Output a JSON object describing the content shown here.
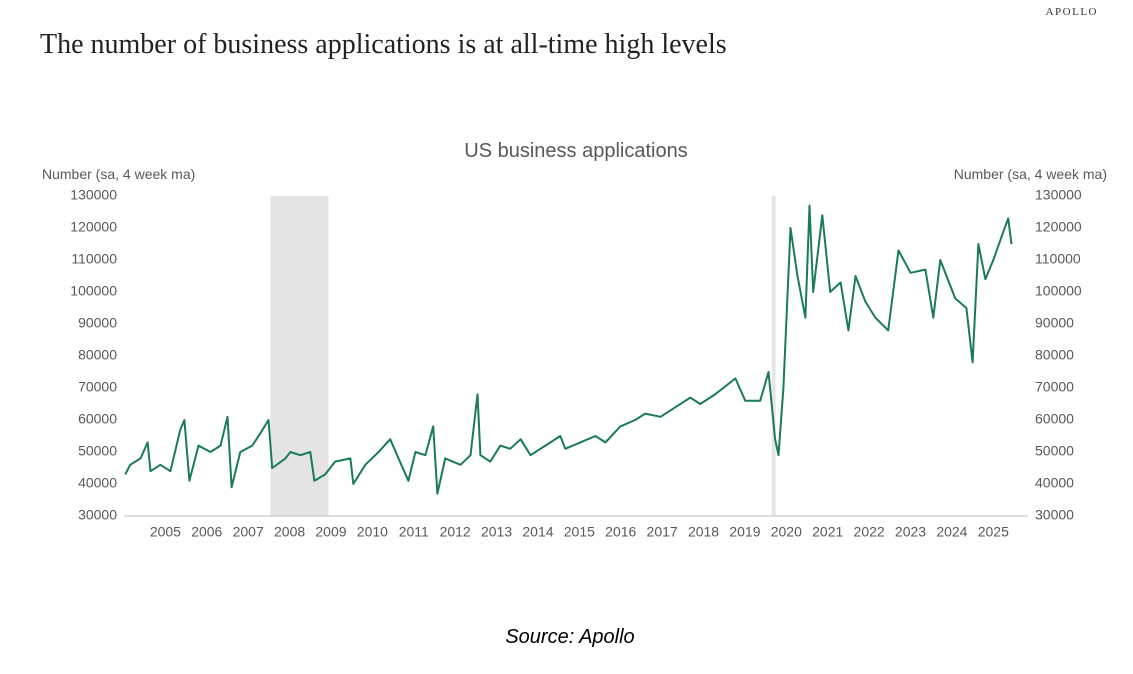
{
  "brand": "APOLLO",
  "headline": "The number of business applications is at all-time high levels",
  "source": "Source: Apollo",
  "chart_data": {
    "type": "line",
    "title": "US business applications",
    "y_label": "Number (sa, 4 week ma)",
    "y2_label": "Number (sa, 4 week ma)",
    "xlim": [
      2004.5,
      2026
    ],
    "ylim": [
      30000,
      130000
    ],
    "y2lim": [
      30000,
      130000
    ],
    "yticks": [
      30000,
      40000,
      50000,
      60000,
      70000,
      80000,
      90000,
      100000,
      110000,
      120000,
      130000
    ],
    "y2ticks": [
      30000,
      40000,
      50000,
      60000,
      70000,
      80000,
      90000,
      100000,
      110000,
      120000,
      130000
    ],
    "xticks": [
      {
        "value": 2005.5,
        "label": "2005"
      },
      {
        "value": 2006.5,
        "label": "2006"
      },
      {
        "value": 2007.5,
        "label": "2007"
      },
      {
        "value": 2008.5,
        "label": "2008"
      },
      {
        "value": 2009.5,
        "label": "2009"
      },
      {
        "value": 2010.5,
        "label": "2010"
      },
      {
        "value": 2011.5,
        "label": "2011"
      },
      {
        "value": 2012.5,
        "label": "2012"
      },
      {
        "value": 2013.5,
        "label": "2013"
      },
      {
        "value": 2014.5,
        "label": "2014"
      },
      {
        "value": 2015.5,
        "label": "2015"
      },
      {
        "value": 2016.5,
        "label": "2016"
      },
      {
        "value": 2017.5,
        "label": "2017"
      },
      {
        "value": 2018.5,
        "label": "2018"
      },
      {
        "value": 2019.5,
        "label": "2019"
      },
      {
        "value": 2020.5,
        "label": "2020"
      },
      {
        "value": 2021.5,
        "label": "2021"
      },
      {
        "value": 2022.5,
        "label": "2022"
      },
      {
        "value": 2023.5,
        "label": "2023"
      },
      {
        "value": 2024.5,
        "label": "2024"
      },
      {
        "value": 2025.5,
        "label": "2025"
      }
    ],
    "shaded_regions": [
      [
        2008.04,
        2009.44
      ],
      [
        2020.15,
        2020.24
      ]
    ],
    "shade_color": "#e3e4e3",
    "series": [
      {
        "color": "#1a7a5e",
        "x": [
          2004.53,
          2004.65,
          2004.9,
          2005.07,
          2005.14,
          2005.38,
          2005.62,
          2005.86,
          2005.96,
          2006.08,
          2006.3,
          2006.59,
          2006.83,
          2007.0,
          2007.1,
          2007.31,
          2007.6,
          2007.8,
          2007.99,
          2008.08,
          2008.4,
          2008.52,
          2008.76,
          2009.0,
          2009.1,
          2009.36,
          2009.6,
          2009.97,
          2010.04,
          2010.33,
          2010.65,
          2010.93,
          2011.13,
          2011.37,
          2011.54,
          2011.78,
          2011.97,
          2012.07,
          2012.26,
          2012.63,
          2012.87,
          2013.04,
          2013.11,
          2013.35,
          2013.59,
          2013.83,
          2014.08,
          2014.32,
          2014.68,
          2015.04,
          2015.16,
          2015.52,
          2015.89,
          2016.13,
          2016.49,
          2016.85,
          2017.09,
          2017.46,
          2017.82,
          2018.18,
          2018.42,
          2018.78,
          2019.27,
          2019.51,
          2019.87,
          2020.07,
          2020.23,
          2020.31,
          2020.43,
          2020.6,
          2020.77,
          2020.96,
          2021.06,
          2021.15,
          2021.37,
          2021.56,
          2021.81,
          2022.0,
          2022.17,
          2022.41,
          2022.65,
          2022.96,
          2023.21,
          2023.5,
          2023.86,
          2024.05,
          2024.22,
          2024.58,
          2024.85,
          2025.0,
          2025.14,
          2025.31,
          2025.5,
          2025.72,
          2025.86,
          2025.94
        ],
        "values": [
          43000,
          46000,
          48000,
          53000,
          44000,
          46000,
          44000,
          57000,
          60000,
          41000,
          52000,
          50000,
          52000,
          61000,
          39000,
          50000,
          52000,
          56000,
          60000,
          45000,
          48000,
          50000,
          49000,
          50000,
          41000,
          43000,
          47000,
          48000,
          40000,
          46000,
          50000,
          54000,
          48000,
          41000,
          50000,
          49000,
          58000,
          37000,
          48000,
          46000,
          49000,
          68000,
          49000,
          47000,
          52000,
          51000,
          54000,
          49000,
          52000,
          55000,
          51000,
          53000,
          55000,
          53000,
          58000,
          60000,
          62000,
          61000,
          64000,
          67000,
          65000,
          68000,
          73000,
          66000,
          66000,
          75000,
          54000,
          49000,
          70000,
          120000,
          105000,
          92000,
          127000,
          100000,
          124000,
          100000,
          103000,
          88000,
          105000,
          97000,
          92000,
          88000,
          113000,
          106000,
          107000,
          92000,
          110000,
          98000,
          95000,
          78000,
          115000,
          104000,
          110000,
          118000,
          123000,
          115000
        ]
      }
    ]
  }
}
